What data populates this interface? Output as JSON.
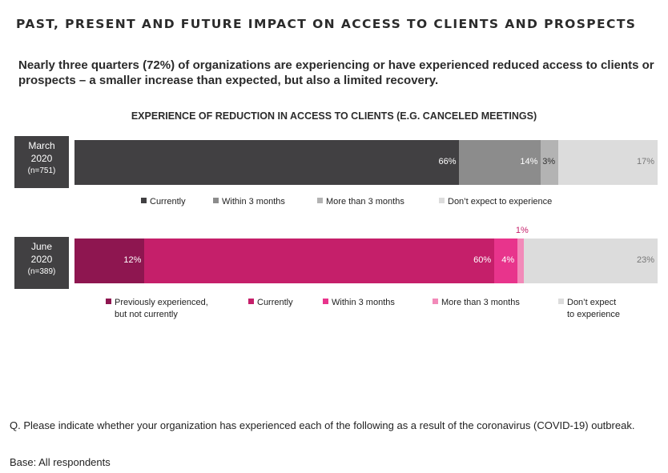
{
  "title": "PAST, PRESENT AND FUTURE IMPACT ON ACCESS TO CLIENTS AND PROSPECTS",
  "subtitle": "Nearly three quarters (72%) of organizations are experiencing or have experienced reduced access to clients or prospects – a smaller increase than expected, but also a limited recovery.",
  "question": "Q. Please indicate whether your organization has experienced each of the following as a result of the coronavirus (COVID-19) outbreak.",
  "base": "Base: All respondents",
  "chart_data": {
    "type": "bar",
    "orientation": "horizontal-stacked-100",
    "title": "EXPERIENCE OF REDUCTION IN ACCESS TO CLIENTS (E.G. CANCELED MEETINGS)",
    "xlabel": "",
    "ylabel": "",
    "unit": "%",
    "grid": false,
    "legend_placement": "below-each-bar",
    "rows": [
      {
        "label_line1": "March",
        "label_line2": "2020",
        "label_n": "(n=751)",
        "segments": [
          {
            "name": "Currently",
            "value": 66,
            "label": "66%",
            "color": "#414042",
            "text_color": "#ffffff"
          },
          {
            "name": "Within 3 months",
            "value": 14,
            "label": "14%",
            "color": "#8c8c8c",
            "text_color": "#ffffff"
          },
          {
            "name": "More than 3 months",
            "value": 3,
            "label": "3%",
            "color": "#b3b3b3",
            "text_color": "#333333"
          },
          {
            "name": "Don’t expect to experience",
            "value": 17,
            "label": "17%",
            "color": "#dcdcdc",
            "text_color": "#777777"
          }
        ],
        "legend": [
          {
            "label": "Currently",
            "color": "#414042"
          },
          {
            "label": "Within 3 months",
            "color": "#8c8c8c"
          },
          {
            "label": "More than 3 months",
            "color": "#b3b3b3"
          },
          {
            "label": "Don’t expect to experience",
            "color": "#dcdcdc"
          }
        ]
      },
      {
        "label_line1": "June",
        "label_line2": "2020",
        "label_n": "(n=389)",
        "segments": [
          {
            "name": "Previously experienced, but not currently",
            "value": 12,
            "label": "12%",
            "color": "#8e1650",
            "text_color": "#ffffff"
          },
          {
            "name": "Currently",
            "value": 60,
            "label": "60%",
            "color": "#c51f6a",
            "text_color": "#ffffff"
          },
          {
            "name": "Within 3 months",
            "value": 4,
            "label": "4%",
            "color": "#e8348c",
            "text_color": "#ffffff"
          },
          {
            "name": "More than 3 months",
            "value": 1,
            "label": "1%",
            "color": "#f28ab9",
            "text_color": "#c51f6a"
          },
          {
            "name": "Don’t expect to experience",
            "value": 23,
            "label": "23%",
            "color": "#dcdcdc",
            "text_color": "#777777"
          }
        ],
        "legend": [
          {
            "label": "Previously experienced,",
            "label2": "but not currently",
            "color": "#8e1650"
          },
          {
            "label": "Currently",
            "color": "#c51f6a"
          },
          {
            "label": "Within 3 months",
            "color": "#e8348c"
          },
          {
            "label": "More than 3 months",
            "color": "#f28ab9"
          },
          {
            "label": "Don’t expect",
            "label2": "to experience",
            "color": "#dcdcdc"
          }
        ]
      }
    ]
  }
}
